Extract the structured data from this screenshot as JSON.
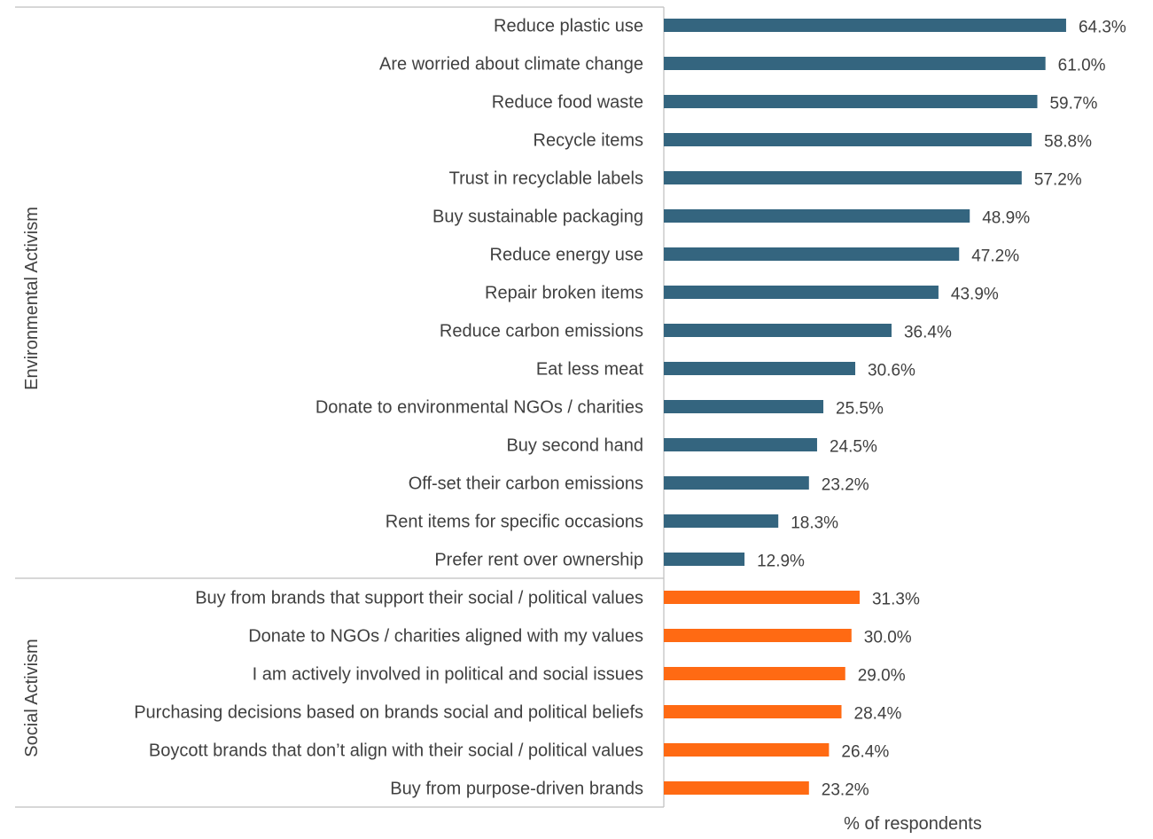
{
  "chart_data": {
    "type": "bar",
    "orientation": "horizontal",
    "title": "",
    "xlabel": "% of respondents",
    "ylabel": "",
    "xlim": [
      0,
      100
    ],
    "grid": false,
    "legend": "none",
    "value_format": "percent-1dp",
    "groups": [
      {
        "name": "Environmental Activism",
        "color": "#34657F",
        "categories": [
          "Reduce plastic use",
          "Are worried about climate change",
          "Reduce food waste",
          "Recycle items",
          "Trust in recyclable labels",
          "Buy sustainable packaging",
          "Reduce energy use",
          "Repair broken items",
          "Reduce carbon emissions",
          "Eat less meat",
          "Donate to environmental NGOs / charities",
          "Buy second hand",
          "Off-set their carbon emissions",
          "Rent items for specific occasions",
          "Prefer rent over ownership"
        ],
        "values": [
          64.3,
          61.0,
          59.7,
          58.8,
          57.2,
          48.9,
          47.2,
          43.9,
          36.4,
          30.6,
          25.5,
          24.5,
          23.2,
          18.3,
          12.9
        ],
        "value_labels": [
          "64.3%",
          "61.0%",
          "59.7%",
          "58.8%",
          "57.2%",
          "48.9%",
          "47.2%",
          "43.9%",
          "36.4%",
          "30.6%",
          "25.5%",
          "24.5%",
          "23.2%",
          "18.3%",
          "12.9%"
        ]
      },
      {
        "name": "Social Activism",
        "color": "#FF6A13",
        "categories": [
          "Buy from brands that support their social / political values",
          "Donate to NGOs / charities aligned with my values",
          "I am actively involved in political and social issues",
          "Purchasing decisions based on brands social and political beliefs",
          "Boycott brands that don’t align with their social / political values",
          "Buy from purpose-driven brands"
        ],
        "values": [
          31.3,
          30.0,
          29.0,
          28.4,
          26.4,
          23.2
        ],
        "value_labels": [
          "31.3%",
          "30.0%",
          "29.0%",
          "28.4%",
          "26.4%",
          "23.2%"
        ]
      }
    ]
  }
}
